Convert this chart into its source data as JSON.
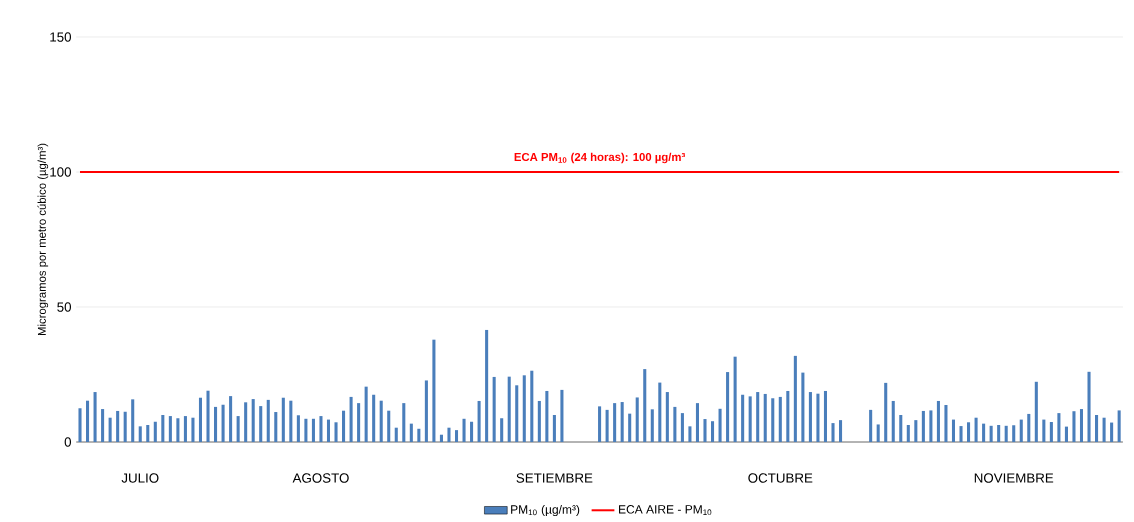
{
  "chart_data": {
    "type": "bar",
    "ylabel": "Microgramos por metro cúbico (µg/m³)",
    "categories": [
      null,
      null,
      null,
      null,
      null,
      null,
      null,
      null,
      "JULIO",
      null,
      null,
      null,
      null,
      null,
      null,
      null,
      null,
      null,
      null,
      null,
      null,
      null,
      null,
      null,
      null,
      null,
      null,
      null,
      null,
      null,
      null,
      null,
      "AGOSTO",
      null,
      null,
      null,
      null,
      null,
      null,
      null,
      null,
      null,
      null,
      null,
      null,
      null,
      null,
      null,
      null,
      null,
      null,
      null,
      null,
      null,
      null,
      null,
      null,
      null,
      null,
      null,
      null,
      null,
      null,
      "SETIEMBRE",
      null,
      null,
      null,
      null,
      null,
      null,
      null,
      null,
      null,
      null,
      null,
      null,
      null,
      null,
      null,
      null,
      null,
      null,
      null,
      null,
      null,
      null,
      null,
      null,
      null,
      null,
      null,
      null,
      null,
      "OCTUBRE",
      null,
      null,
      null,
      null,
      null,
      null,
      null,
      null,
      null,
      null,
      null,
      null,
      null,
      null,
      null,
      null,
      null,
      null,
      null,
      null,
      null,
      null,
      null,
      null,
      null,
      null,
      null,
      null,
      null,
      null,
      "NOVIEMBRE",
      null,
      null,
      null,
      null,
      null,
      null,
      null,
      null,
      null,
      null,
      null,
      null,
      null,
      null
    ],
    "series": [
      {
        "name": "PM$_{10}$ (µg/m³)",
        "color": "#4a7ebb",
        "values": [
          12.5,
          15.3,
          18.5,
          12.2,
          9.0,
          11.5,
          11.2,
          15.8,
          5.8,
          6.3,
          7.5,
          10.0,
          9.6,
          8.8,
          9.6,
          9.0,
          16.4,
          19.0,
          13.0,
          13.8,
          17.0,
          9.6,
          14.7,
          15.9,
          13.3,
          15.6,
          11.1,
          16.4,
          15.3,
          9.9,
          8.6,
          8.6,
          9.6,
          8.3,
          7.3,
          11.6,
          16.7,
          14.4,
          20.5,
          17.5,
          15.3,
          11.6,
          5.3,
          14.4,
          6.8,
          4.9,
          22.8,
          37.9,
          2.7,
          5.3,
          4.4,
          8.6,
          7.5,
          15.2,
          41.5,
          24.1,
          8.8,
          24.2,
          21.0,
          24.7,
          26.4,
          15.2,
          18.9,
          10.0,
          19.3,
          null,
          null,
          null,
          null,
          13.2,
          11.9,
          14.4,
          14.8,
          10.5,
          16.5,
          27.0,
          12.1,
          22.0,
          18.5,
          13.0,
          10.7,
          5.8,
          14.4,
          8.5,
          7.7,
          12.3,
          25.9,
          31.6,
          17.5,
          16.9,
          18.5,
          17.8,
          16.2,
          16.7,
          18.9,
          31.9,
          25.7,
          18.5,
          17.9,
          18.9,
          7.0,
          8.1,
          null,
          null,
          null,
          11.9,
          6.5,
          21.9,
          15.2,
          10.0,
          6.3,
          8.1,
          11.5,
          11.7,
          15.2,
          13.7,
          8.3,
          5.9,
          7.3,
          9.0,
          6.8,
          6.0,
          6.3,
          6.0,
          6.2,
          8.3,
          10.4,
          22.3,
          8.3,
          7.4,
          10.7,
          5.7,
          11.4,
          12.2,
          26.0,
          10.0,
          9.0,
          7.2,
          11.7
        ]
      },
      {
        "name": "ECA AIRE - PM$_{10}$",
        "type": "line",
        "color": "#ff0000",
        "values": [
          100,
          100,
          100,
          100,
          100,
          100,
          100,
          100,
          100,
          100,
          100,
          100,
          100,
          100,
          100,
          100,
          100,
          100,
          100,
          100,
          100,
          100,
          100,
          100,
          100,
          100,
          100,
          100,
          100,
          100,
          100,
          100,
          100,
          100,
          100,
          100,
          100,
          100,
          100,
          100,
          100,
          100,
          100,
          100,
          100,
          100,
          100,
          100,
          100,
          100,
          100,
          100,
          100,
          100,
          100,
          100,
          100,
          100,
          100,
          100,
          100,
          100,
          100,
          100,
          100,
          100,
          100,
          100,
          100,
          100,
          100,
          100,
          100,
          100,
          100,
          100,
          100,
          100,
          100,
          100,
          100,
          100,
          100,
          100,
          100,
          100,
          100,
          100,
          100,
          100,
          100,
          100,
          100,
          100,
          100,
          100,
          100,
          100,
          100,
          100,
          100,
          100,
          100,
          100,
          100,
          100,
          100,
          100,
          100,
          100,
          100,
          100,
          100,
          100,
          100,
          100,
          100,
          100,
          100,
          100,
          100,
          100,
          100,
          100,
          100,
          100,
          100,
          100,
          100,
          100,
          100,
          100,
          100,
          100,
          100,
          100,
          100,
          100,
          100
        ]
      }
    ],
    "annotations": [
      {
        "text": "ECA PM$_{10}$ (24 horas):  100 µg/m³",
        "y": 100
      }
    ],
    "ylim": [
      0,
      150
    ],
    "yticks": [
      0,
      50,
      100,
      150
    ],
    "grid": "y",
    "legend": "bottom"
  }
}
